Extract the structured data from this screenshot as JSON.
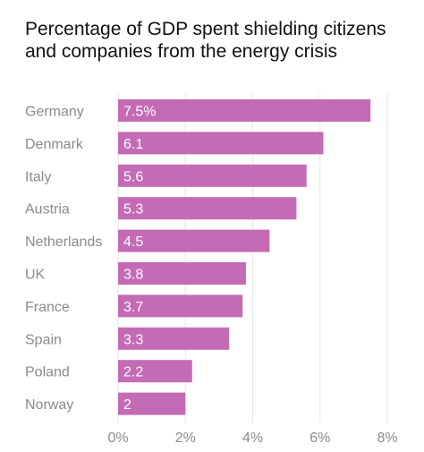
{
  "chart_data": {
    "type": "bar",
    "orientation": "horizontal",
    "title": "Percentage of GDP spent shielding citizens and companies from the energy crisis",
    "categories": [
      "Germany",
      "Denmark",
      "Italy",
      "Austria",
      "Netherlands",
      "UK",
      "France",
      "Spain",
      "Poland",
      "Norway"
    ],
    "values": [
      7.5,
      6.1,
      5.6,
      5.3,
      4.5,
      3.8,
      3.7,
      3.3,
      2.2,
      2
    ],
    "value_labels": [
      "7.5%",
      "6.1",
      "5.6",
      "5.3",
      "4.5",
      "3.8",
      "3.7",
      "3.3",
      "2.2",
      "2"
    ],
    "x_ticks": [
      0,
      2,
      4,
      6,
      8
    ],
    "x_tick_labels": [
      "0%",
      "2%",
      "4%",
      "6%",
      "8%"
    ],
    "xlim": [
      0,
      8
    ],
    "xlabel": "",
    "ylabel": "",
    "grid": "vertical",
    "bar_color": "#c46bb5",
    "grid_color": "#e6e6e6"
  }
}
